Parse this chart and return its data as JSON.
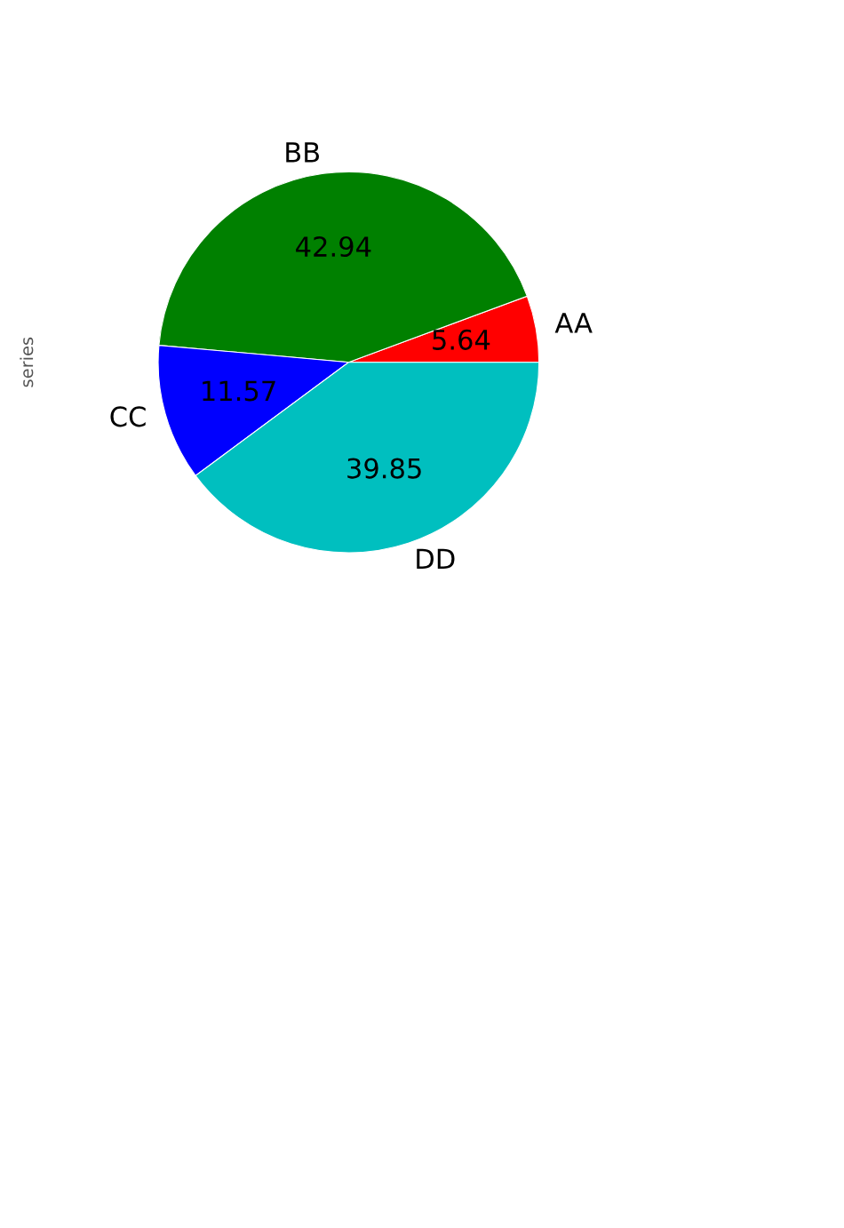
{
  "chart_data": {
    "type": "pie",
    "ylabel": "series",
    "categories": [
      "AA",
      "BB",
      "CC",
      "DD"
    ],
    "values": [
      5.64,
      42.94,
      11.57,
      39.85
    ],
    "colors": [
      "#ff0000",
      "#008000",
      "#0000ff",
      "#00bfbf"
    ],
    "data_labels": true,
    "legend": false
  }
}
